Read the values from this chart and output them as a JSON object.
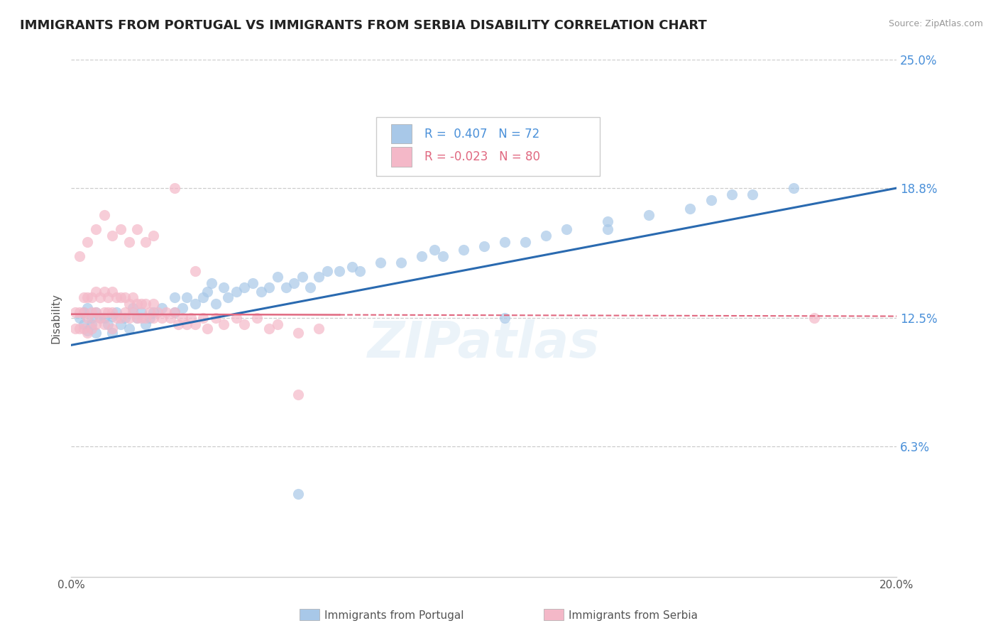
{
  "title": "IMMIGRANTS FROM PORTUGAL VS IMMIGRANTS FROM SERBIA DISABILITY CORRELATION CHART",
  "source": "Source: ZipAtlas.com",
  "ylabel": "Disability",
  "legend_labels": [
    "Immigrants from Portugal",
    "Immigrants from Serbia"
  ],
  "r_portugal": 0.407,
  "n_portugal": 72,
  "r_serbia": -0.023,
  "n_serbia": 80,
  "color_portugal": "#a8c8e8",
  "color_serbia": "#f4b8c8",
  "trendline_portugal": "#2a6ab0",
  "trendline_serbia": "#e06880",
  "xmin": 0.0,
  "xmax": 0.2,
  "ymin": 0.0,
  "ymax": 0.25,
  "yticks_right": [
    0.063,
    0.125,
    0.188,
    0.25
  ],
  "yticks_right_labels": [
    "6.3%",
    "12.5%",
    "18.8%",
    "25.0%"
  ],
  "xticks": [
    0.0,
    0.05,
    0.1,
    0.15,
    0.2
  ],
  "xtick_labels": [
    "0.0%",
    "",
    "",
    "",
    "20.0%"
  ],
  "watermark": "ZIPatlas",
  "portugal_x": [
    0.002,
    0.003,
    0.003,
    0.004,
    0.004,
    0.005,
    0.005,
    0.006,
    0.006,
    0.007,
    0.008,
    0.009,
    0.01,
    0.01,
    0.011,
    0.012,
    0.013,
    0.014,
    0.015,
    0.016,
    0.017,
    0.018,
    0.019,
    0.02,
    0.022,
    0.025,
    0.025,
    0.027,
    0.028,
    0.03,
    0.032,
    0.033,
    0.034,
    0.035,
    0.037,
    0.038,
    0.04,
    0.042,
    0.044,
    0.046,
    0.048,
    0.05,
    0.052,
    0.054,
    0.056,
    0.058,
    0.06,
    0.062,
    0.065,
    0.068,
    0.07,
    0.075,
    0.08,
    0.085,
    0.088,
    0.09,
    0.095,
    0.1,
    0.105,
    0.11,
    0.115,
    0.12,
    0.13,
    0.13,
    0.14,
    0.15,
    0.155,
    0.16,
    0.165,
    0.175,
    0.055,
    0.105
  ],
  "portugal_y": [
    0.125,
    0.128,
    0.122,
    0.13,
    0.119,
    0.125,
    0.122,
    0.128,
    0.118,
    0.125,
    0.125,
    0.122,
    0.126,
    0.118,
    0.128,
    0.122,
    0.125,
    0.12,
    0.13,
    0.125,
    0.128,
    0.122,
    0.125,
    0.128,
    0.13,
    0.135,
    0.128,
    0.13,
    0.135,
    0.132,
    0.135,
    0.138,
    0.142,
    0.132,
    0.14,
    0.135,
    0.138,
    0.14,
    0.142,
    0.138,
    0.14,
    0.145,
    0.14,
    0.142,
    0.145,
    0.14,
    0.145,
    0.148,
    0.148,
    0.15,
    0.148,
    0.152,
    0.152,
    0.155,
    0.158,
    0.155,
    0.158,
    0.16,
    0.162,
    0.162,
    0.165,
    0.168,
    0.168,
    0.172,
    0.175,
    0.178,
    0.182,
    0.185,
    0.185,
    0.188,
    0.04,
    0.125
  ],
  "serbia_x": [
    0.001,
    0.001,
    0.002,
    0.002,
    0.003,
    0.003,
    0.003,
    0.004,
    0.004,
    0.004,
    0.005,
    0.005,
    0.005,
    0.006,
    0.006,
    0.006,
    0.007,
    0.007,
    0.008,
    0.008,
    0.008,
    0.009,
    0.009,
    0.01,
    0.01,
    0.01,
    0.011,
    0.011,
    0.012,
    0.012,
    0.013,
    0.013,
    0.014,
    0.014,
    0.015,
    0.015,
    0.016,
    0.016,
    0.017,
    0.017,
    0.018,
    0.018,
    0.019,
    0.02,
    0.02,
    0.021,
    0.022,
    0.023,
    0.024,
    0.025,
    0.026,
    0.027,
    0.028,
    0.029,
    0.03,
    0.032,
    0.033,
    0.035,
    0.037,
    0.04,
    0.042,
    0.045,
    0.048,
    0.05,
    0.055,
    0.06,
    0.002,
    0.004,
    0.006,
    0.008,
    0.01,
    0.012,
    0.014,
    0.016,
    0.018,
    0.02,
    0.025,
    0.03,
    0.18,
    0.055
  ],
  "serbia_y": [
    0.128,
    0.12,
    0.128,
    0.12,
    0.135,
    0.128,
    0.12,
    0.135,
    0.125,
    0.118,
    0.135,
    0.128,
    0.12,
    0.138,
    0.128,
    0.122,
    0.135,
    0.125,
    0.138,
    0.128,
    0.122,
    0.135,
    0.128,
    0.138,
    0.128,
    0.12,
    0.135,
    0.125,
    0.135,
    0.125,
    0.135,
    0.128,
    0.132,
    0.125,
    0.135,
    0.128,
    0.132,
    0.125,
    0.132,
    0.125,
    0.132,
    0.125,
    0.128,
    0.132,
    0.125,
    0.128,
    0.125,
    0.128,
    0.125,
    0.128,
    0.122,
    0.125,
    0.122,
    0.125,
    0.122,
    0.125,
    0.12,
    0.125,
    0.122,
    0.125,
    0.122,
    0.125,
    0.12,
    0.122,
    0.118,
    0.12,
    0.155,
    0.162,
    0.168,
    0.175,
    0.165,
    0.168,
    0.162,
    0.168,
    0.162,
    0.165,
    0.188,
    0.148,
    0.125,
    0.088
  ]
}
